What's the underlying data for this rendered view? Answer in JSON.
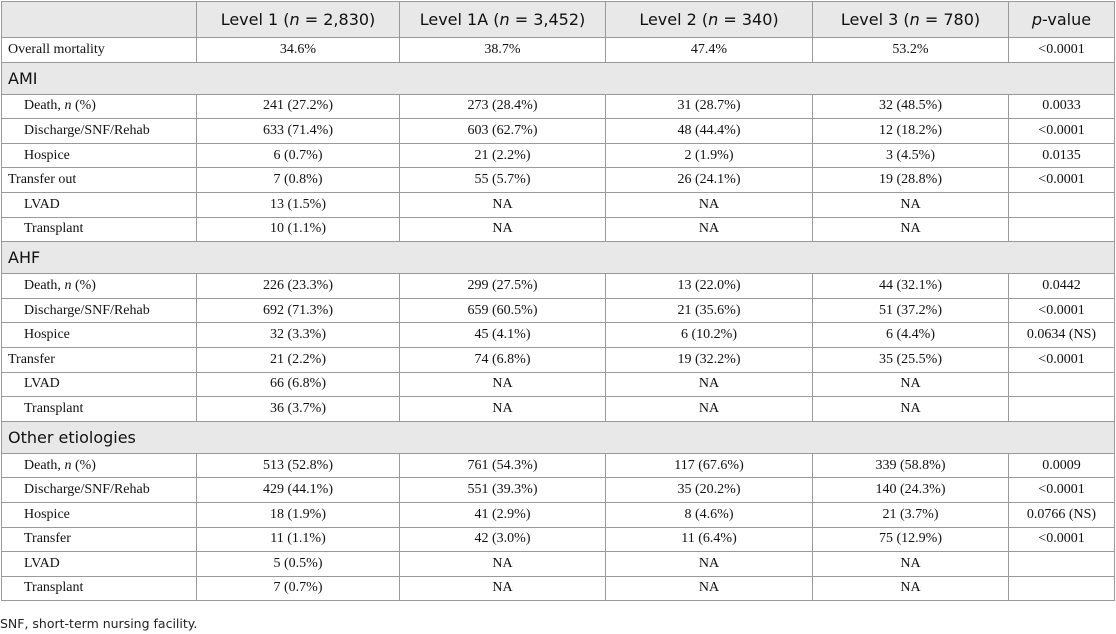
{
  "header": {
    "columns": [
      {
        "pre": "",
        "it": "",
        "post": ""
      },
      {
        "pre": "Level 1 (",
        "it": "n",
        "post": " = 2,830)"
      },
      {
        "pre": "Level 1A (",
        "it": "n",
        "post": " = 3,452)"
      },
      {
        "pre": "Level 2 (",
        "it": "n",
        "post": " = 340)"
      },
      {
        "pre": "Level 3 (",
        "it": "n",
        "post": " = 780)"
      },
      {
        "pre": "",
        "it": "p",
        "post": "-value"
      }
    ]
  },
  "rows": [
    {
      "type": "data",
      "label": "Overall mortality",
      "indent": false,
      "values": [
        "34.6%",
        "38.7%",
        "47.4%",
        "53.2%",
        "<0.0001"
      ]
    },
    {
      "type": "section",
      "label": "AMI"
    },
    {
      "type": "data",
      "label": "Death, ",
      "label_it": "n",
      "label_post": " (%)",
      "indent": true,
      "values": [
        "241 (27.2%)",
        "273 (28.4%)",
        "31 (28.7%)",
        "32 (48.5%)",
        "0.0033"
      ]
    },
    {
      "type": "data",
      "label": "Discharge/SNF/Rehab",
      "indent": true,
      "values": [
        "633 (71.4%)",
        "603 (62.7%)",
        "48 (44.4%)",
        "12 (18.2%)",
        "<0.0001"
      ]
    },
    {
      "type": "data",
      "label": "Hospice",
      "indent": true,
      "values": [
        "6 (0.7%)",
        "21 (2.2%)",
        "2 (1.9%)",
        "3 (4.5%)",
        "0.0135"
      ]
    },
    {
      "type": "data",
      "label": "Transfer out",
      "indent": false,
      "values": [
        "7 (0.8%)",
        "55 (5.7%)",
        "26 (24.1%)",
        "19 (28.8%)",
        "<0.0001"
      ]
    },
    {
      "type": "data",
      "label": "LVAD",
      "indent": true,
      "values": [
        "13 (1.5%)",
        "NA",
        "NA",
        "NA",
        ""
      ]
    },
    {
      "type": "data",
      "label": "Transplant",
      "indent": true,
      "values": [
        "10 (1.1%)",
        "NA",
        "NA",
        "NA",
        ""
      ]
    },
    {
      "type": "section",
      "label": "AHF"
    },
    {
      "type": "data",
      "label": "Death, ",
      "label_it": "n",
      "label_post": " (%)",
      "indent": true,
      "values": [
        "226 (23.3%)",
        "299 (27.5%)",
        "13 (22.0%)",
        "44 (32.1%)",
        "0.0442"
      ]
    },
    {
      "type": "data",
      "label": "Discharge/SNF/Rehab",
      "indent": true,
      "values": [
        "692 (71.3%)",
        "659 (60.5%)",
        "21 (35.6%)",
        "51 (37.2%)",
        "<0.0001"
      ]
    },
    {
      "type": "data",
      "label": "Hospice",
      "indent": true,
      "values": [
        "32 (3.3%)",
        "45 (4.1%)",
        "6 (10.2%)",
        "6 (4.4%)",
        "0.0634 (NS)"
      ]
    },
    {
      "type": "data",
      "label": "Transfer",
      "indent": false,
      "values": [
        "21 (2.2%)",
        "74 (6.8%)",
        "19 (32.2%)",
        "35 (25.5%)",
        "<0.0001"
      ]
    },
    {
      "type": "data",
      "label": "LVAD",
      "indent": true,
      "values": [
        "66 (6.8%)",
        "NA",
        "NA",
        "NA",
        ""
      ]
    },
    {
      "type": "data",
      "label": "Transplant",
      "indent": true,
      "values": [
        "36 (3.7%)",
        "NA",
        "NA",
        "NA",
        ""
      ]
    },
    {
      "type": "section",
      "label": "Other etiologies"
    },
    {
      "type": "data",
      "label": "Death, ",
      "label_it": "n",
      "label_post": " (%)",
      "indent": true,
      "values": [
        "513 (52.8%)",
        "761 (54.3%)",
        "117 (67.6%)",
        "339 (58.8%)",
        "0.0009"
      ]
    },
    {
      "type": "data",
      "label": "Discharge/SNF/Rehab",
      "indent": true,
      "values": [
        "429 (44.1%)",
        "551 (39.3%)",
        "35 (20.2%)",
        "140 (24.3%)",
        "<0.0001"
      ]
    },
    {
      "type": "data",
      "label": "Hospice",
      "indent": true,
      "values": [
        "18 (1.9%)",
        "41 (2.9%)",
        "8 (4.6%)",
        "21 (3.7%)",
        "0.0766 (NS)"
      ]
    },
    {
      "type": "data",
      "label": "Transfer",
      "indent": true,
      "values": [
        "11 (1.1%)",
        "42 (3.0%)",
        "11 (6.4%)",
        "75 (12.9%)",
        "<0.0001"
      ]
    },
    {
      "type": "data",
      "label": "LVAD",
      "indent": true,
      "values": [
        "5 (0.5%)",
        "NA",
        "NA",
        "NA",
        ""
      ]
    },
    {
      "type": "data",
      "label": "Transplant",
      "indent": true,
      "values": [
        "7 (0.7%)",
        "NA",
        "NA",
        "NA",
        ""
      ]
    }
  ],
  "footnote": "SNF, short-term nursing facility."
}
